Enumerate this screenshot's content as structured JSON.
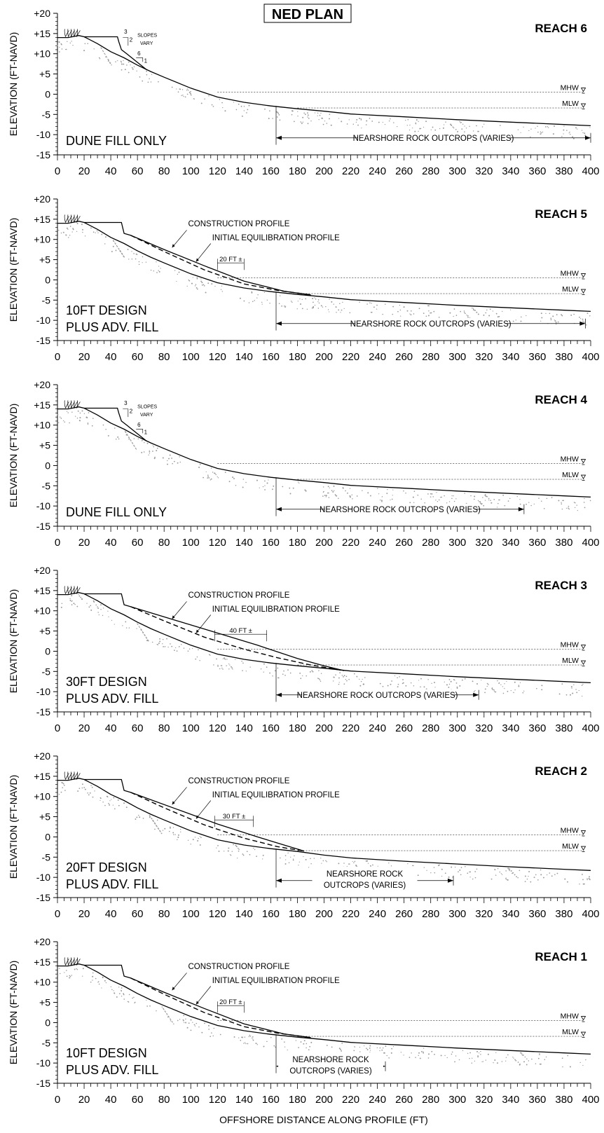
{
  "title": "NED PLAN",
  "x_axis_label": "OFFSHORE DISTANCE ALONG PROFILE (FT)",
  "y_axis_label": "ELEVATION (FT-NAVD)",
  "x_ticks": [
    "0",
    "20",
    "40",
    "60",
    "80",
    "100",
    "120",
    "140",
    "160",
    "180",
    "200",
    "220",
    "240",
    "260",
    "280",
    "300",
    "320",
    "340",
    "360",
    "380",
    "400"
  ],
  "y_ticks": [
    "+20",
    "+15",
    "+10",
    "+5",
    "0",
    "-5",
    "-10",
    "-15"
  ],
  "mhw_label": "MHW",
  "mlw_label": "MLW",
  "chart_data": [
    {
      "type": "line",
      "reach": "REACH 6",
      "design_text": [
        "DUNE FILL ONLY"
      ],
      "x_range": [
        0,
        400
      ],
      "y_range": [
        -15,
        20
      ],
      "mhw": 0.5,
      "mlw": -3.4,
      "existing_profile": [
        [
          0,
          14
        ],
        [
          8,
          14
        ],
        [
          16,
          14.5
        ],
        [
          20,
          14.2
        ],
        [
          30,
          12.5
        ],
        [
          40,
          10.5
        ],
        [
          50,
          9
        ],
        [
          60,
          7.2
        ],
        [
          70,
          5.6
        ],
        [
          80,
          4.2
        ],
        [
          100,
          1.5
        ],
        [
          120,
          -0.7
        ],
        [
          140,
          -2
        ],
        [
          160,
          -2.9
        ],
        [
          180,
          -3.6
        ],
        [
          200,
          -4.2
        ],
        [
          220,
          -4.9
        ],
        [
          260,
          -5.6
        ],
        [
          300,
          -6.3
        ],
        [
          340,
          -6.9
        ],
        [
          380,
          -7.5
        ],
        [
          400,
          -7.8
        ]
      ],
      "dune_fill_profile": [
        [
          20,
          14.2
        ],
        [
          45,
          14.2
        ],
        [
          46,
          13
        ],
        [
          48,
          11
        ],
        [
          52,
          10
        ],
        [
          67,
          6
        ]
      ],
      "slope_notes": {
        "top_ratio": [
          "3",
          "2"
        ],
        "bottom_ratio": [
          "6",
          "1"
        ],
        "text": [
          "SLOPES",
          "VARY"
        ]
      },
      "rock_outcrops": {
        "text": "NEARSHORE ROCK OUTCROPS (VARIES)",
        "x_start": 164,
        "x_end": 400
      }
    },
    {
      "type": "line",
      "reach": "REACH 5",
      "design_text": [
        "10FT DESIGN",
        "PLUS ADV. FILL"
      ],
      "x_range": [
        0,
        400
      ],
      "y_range": [
        -15,
        20
      ],
      "mhw": 0.5,
      "mlw": -3.4,
      "existing_profile": [
        [
          0,
          14
        ],
        [
          8,
          14
        ],
        [
          16,
          14.5
        ],
        [
          20,
          14.2
        ],
        [
          30,
          12.5
        ],
        [
          40,
          10.5
        ],
        [
          50,
          9
        ],
        [
          60,
          7.2
        ],
        [
          70,
          5.6
        ],
        [
          80,
          4.2
        ],
        [
          100,
          1.5
        ],
        [
          120,
          -0.7
        ],
        [
          140,
          -2
        ],
        [
          160,
          -2.9
        ],
        [
          180,
          -3.6
        ],
        [
          200,
          -4.2
        ],
        [
          220,
          -4.9
        ],
        [
          260,
          -5.6
        ],
        [
          300,
          -6.3
        ],
        [
          340,
          -6.9
        ],
        [
          380,
          -7.5
        ],
        [
          400,
          -7.8
        ]
      ],
      "construction_profile": [
        [
          20,
          14.2
        ],
        [
          48,
          14.2
        ],
        [
          50,
          11.5
        ],
        [
          55,
          11
        ],
        [
          80,
          7.5
        ],
        [
          110,
          3.5
        ],
        [
          140,
          -0.3
        ],
        [
          170,
          -2.8
        ],
        [
          190,
          -3.7
        ]
      ],
      "equilibration_profile": [
        [
          55,
          11
        ],
        [
          80,
          7
        ],
        [
          110,
          2.5
        ],
        [
          140,
          -1
        ],
        [
          165,
          -2.6
        ],
        [
          190,
          -3.7
        ]
      ],
      "construction_label": "CONSTRUCTION PROFILE",
      "equilibration_label": "INITIAL EQUILIBRATION PROFILE",
      "offset": {
        "text": "20 FT ±",
        "x_start": 120,
        "x_end": 140
      },
      "rock_outcrops": {
        "text": "NEARSHORE ROCK OUTCROPS (VARIES)",
        "x_start": 164,
        "x_end": 396
      }
    },
    {
      "type": "line",
      "reach": "REACH 4",
      "design_text": [
        "DUNE FILL ONLY"
      ],
      "x_range": [
        0,
        400
      ],
      "y_range": [
        -15,
        20
      ],
      "mhw": 0.5,
      "mlw": -3.4,
      "existing_profile": [
        [
          0,
          14
        ],
        [
          8,
          14
        ],
        [
          16,
          14.5
        ],
        [
          20,
          14.2
        ],
        [
          30,
          12.5
        ],
        [
          40,
          10.5
        ],
        [
          50,
          9
        ],
        [
          60,
          7.2
        ],
        [
          70,
          5.6
        ],
        [
          80,
          4.2
        ],
        [
          100,
          1.5
        ],
        [
          120,
          -0.7
        ],
        [
          140,
          -2
        ],
        [
          160,
          -2.9
        ],
        [
          180,
          -3.6
        ],
        [
          200,
          -4.2
        ],
        [
          220,
          -4.9
        ],
        [
          260,
          -5.6
        ],
        [
          300,
          -6.3
        ],
        [
          340,
          -6.9
        ],
        [
          380,
          -7.5
        ],
        [
          400,
          -7.8
        ]
      ],
      "dune_fill_profile": [
        [
          20,
          14.2
        ],
        [
          45,
          14.2
        ],
        [
          46,
          13
        ],
        [
          48,
          11
        ],
        [
          52,
          10
        ],
        [
          67,
          6
        ]
      ],
      "slope_notes": {
        "top_ratio": [
          "3",
          "2"
        ],
        "bottom_ratio": [
          "6",
          "1"
        ],
        "text": [
          "SLOPES",
          "VARY"
        ]
      },
      "rock_outcrops": {
        "text": "NEARSHORE ROCK OUTCROPS (VARIES)",
        "x_start": 164,
        "x_end": 350
      }
    },
    {
      "type": "line",
      "reach": "REACH 3",
      "design_text": [
        "30FT DESIGN",
        "PLUS ADV. FILL"
      ],
      "x_range": [
        0,
        400
      ],
      "y_range": [
        -15,
        20
      ],
      "mhw": 0.5,
      "mlw": -3.4,
      "existing_profile": [
        [
          0,
          14
        ],
        [
          8,
          14
        ],
        [
          16,
          14.5
        ],
        [
          20,
          14.2
        ],
        [
          30,
          12.5
        ],
        [
          40,
          10.5
        ],
        [
          50,
          9
        ],
        [
          60,
          7.2
        ],
        [
          70,
          5.6
        ],
        [
          80,
          4.2
        ],
        [
          100,
          1.5
        ],
        [
          120,
          -0.7
        ],
        [
          140,
          -2
        ],
        [
          160,
          -2.9
        ],
        [
          180,
          -3.6
        ],
        [
          200,
          -4.2
        ],
        [
          220,
          -4.9
        ],
        [
          260,
          -5.6
        ],
        [
          300,
          -6.3
        ],
        [
          340,
          -6.9
        ],
        [
          380,
          -7.5
        ],
        [
          400,
          -7.8
        ]
      ],
      "construction_profile": [
        [
          20,
          14.2
        ],
        [
          48,
          14.2
        ],
        [
          50,
          11.5
        ],
        [
          55,
          11
        ],
        [
          100,
          6.5
        ],
        [
          150,
          1.5
        ],
        [
          180,
          -1.8
        ],
        [
          200,
          -3.6
        ],
        [
          215,
          -4.8
        ]
      ],
      "equilibration_profile": [
        [
          55,
          11
        ],
        [
          80,
          7.5
        ],
        [
          110,
          3.5
        ],
        [
          140,
          0.5
        ],
        [
          165,
          -1.6
        ],
        [
          190,
          -3.4
        ],
        [
          215,
          -4.8
        ]
      ],
      "construction_label": "CONSTRUCTION PROFILE",
      "equilibration_label": "INITIAL EQUILIBRATION PROFILE",
      "offset": {
        "text": "40 FT ±",
        "x_start": 118,
        "x_end": 157
      },
      "rock_outcrops": {
        "text": "NEARSHORE ROCK OUTCROPS (VARIES)",
        "x_start": 164,
        "x_end": 316
      }
    },
    {
      "type": "line",
      "reach": "REACH 2",
      "design_text": [
        "20FT DESIGN",
        "PLUS ADV. FILL"
      ],
      "x_range": [
        0,
        400
      ],
      "y_range": [
        -15,
        20
      ],
      "mhw": 0.5,
      "mlw": -3.4,
      "existing_profile": [
        [
          0,
          14
        ],
        [
          8,
          14
        ],
        [
          16,
          14.5
        ],
        [
          20,
          14.2
        ],
        [
          30,
          12.5
        ],
        [
          40,
          10.5
        ],
        [
          50,
          9
        ],
        [
          60,
          7.2
        ],
        [
          70,
          5.6
        ],
        [
          80,
          4.2
        ],
        [
          100,
          1.5
        ],
        [
          120,
          -0.7
        ],
        [
          140,
          -2
        ],
        [
          160,
          -2.9
        ],
        [
          180,
          -3.6
        ],
        [
          200,
          -4.5
        ],
        [
          220,
          -5.2
        ],
        [
          260,
          -6
        ],
        [
          300,
          -6.7
        ],
        [
          340,
          -7.4
        ],
        [
          380,
          -8
        ],
        [
          400,
          -8.3
        ]
      ],
      "construction_profile": [
        [
          20,
          14.2
        ],
        [
          48,
          14.2
        ],
        [
          50,
          11.5
        ],
        [
          55,
          11
        ],
        [
          90,
          6.8
        ],
        [
          120,
          3.2
        ],
        [
          150,
          0
        ],
        [
          170,
          -2
        ],
        [
          185,
          -3.5
        ]
      ],
      "equilibration_profile": [
        [
          55,
          11
        ],
        [
          80,
          7.2
        ],
        [
          110,
          3
        ],
        [
          140,
          -0.3
        ],
        [
          165,
          -2.4
        ],
        [
          185,
          -3.5
        ]
      ],
      "construction_label": "CONSTRUCTION PROFILE",
      "equilibration_label": "INITIAL EQUILIBRATION PROFILE",
      "offset": {
        "text": "30 FT ±",
        "x_start": 118,
        "x_end": 147
      },
      "rock_outcrops": {
        "text": [
          "NEARSHORE ROCK",
          "OUTCROPS (VARIES)"
        ],
        "x_start": 164,
        "x_end": 297
      }
    },
    {
      "type": "line",
      "reach": "REACH 1",
      "design_text": [
        "10FT DESIGN",
        "PLUS ADV. FILL"
      ],
      "x_range": [
        0,
        400
      ],
      "y_range": [
        -15,
        20
      ],
      "mhw": 0.5,
      "mlw": -3.4,
      "existing_profile": [
        [
          0,
          14
        ],
        [
          8,
          14
        ],
        [
          16,
          14.5
        ],
        [
          20,
          14.2
        ],
        [
          30,
          12.5
        ],
        [
          40,
          10.5
        ],
        [
          50,
          9
        ],
        [
          60,
          7.2
        ],
        [
          70,
          5.6
        ],
        [
          80,
          4.2
        ],
        [
          100,
          1.5
        ],
        [
          120,
          -0.7
        ],
        [
          140,
          -2
        ],
        [
          160,
          -2.9
        ],
        [
          180,
          -3.6
        ],
        [
          200,
          -4.2
        ],
        [
          220,
          -4.9
        ],
        [
          260,
          -5.6
        ],
        [
          300,
          -6.3
        ],
        [
          340,
          -6.9
        ],
        [
          380,
          -7.5
        ],
        [
          400,
          -7.8
        ]
      ],
      "construction_profile": [
        [
          20,
          14.2
        ],
        [
          48,
          14.2
        ],
        [
          50,
          11.5
        ],
        [
          55,
          11
        ],
        [
          80,
          7.5
        ],
        [
          110,
          3.5
        ],
        [
          140,
          -0.3
        ],
        [
          170,
          -2.8
        ],
        [
          190,
          -3.7
        ]
      ],
      "equilibration_profile": [
        [
          55,
          11
        ],
        [
          80,
          7
        ],
        [
          110,
          2.5
        ],
        [
          140,
          -1
        ],
        [
          165,
          -2.6
        ],
        [
          190,
          -3.7
        ]
      ],
      "construction_label": "CONSTRUCTION PROFILE",
      "equilibration_label": "INITIAL EQUILIBRATION PROFILE",
      "offset": {
        "text": "20 FT ±",
        "x_start": 120,
        "x_end": 140
      },
      "rock_outcrops": {
        "text": [
          "NEARSHORE ROCK",
          "OUTCROPS (VARIES)"
        ],
        "x_start": 164,
        "x_end": 246
      }
    }
  ]
}
